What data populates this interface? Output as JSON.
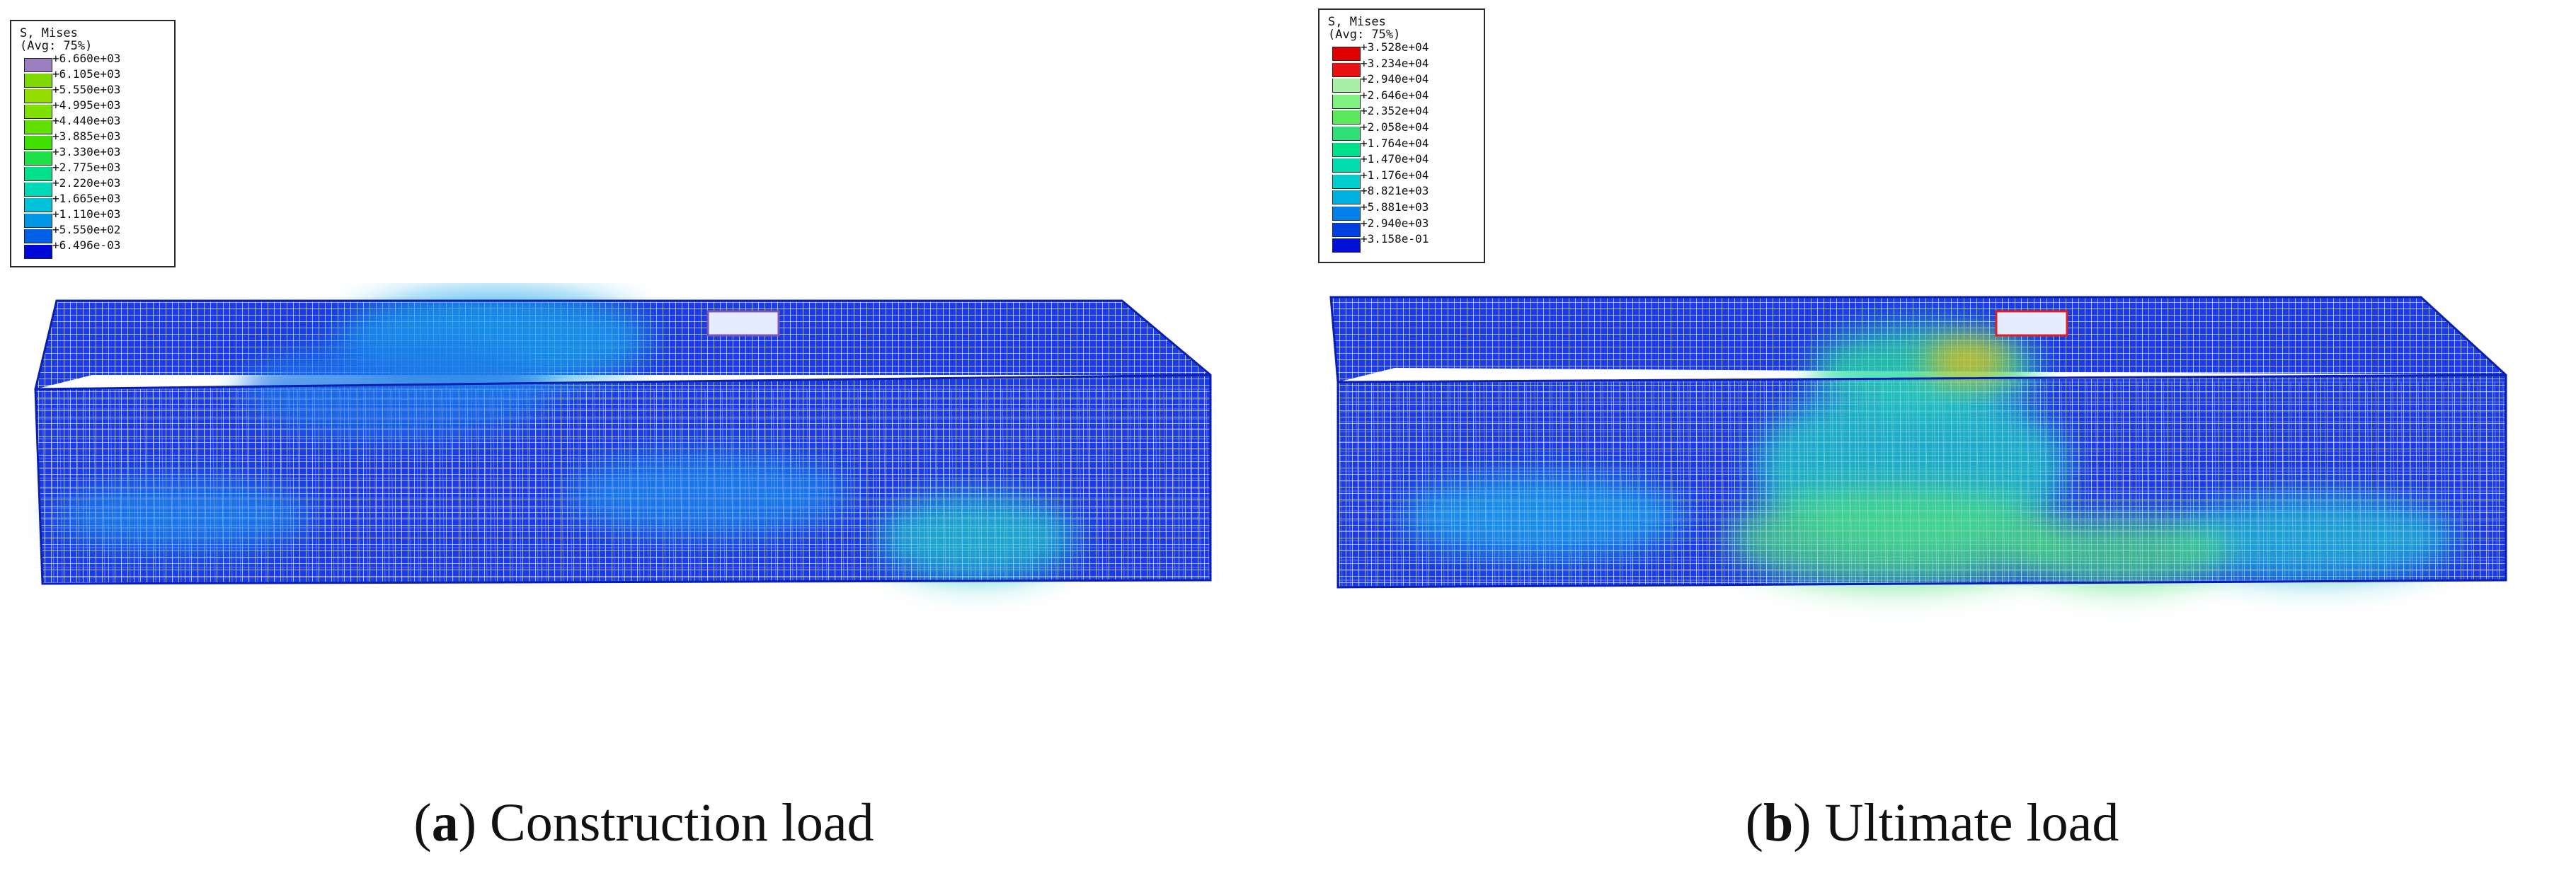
{
  "panels": [
    {
      "id": "a",
      "caption_letter": "a",
      "caption_text": "Construction load",
      "legend": {
        "title": "S, Mises",
        "subtitle": "(Avg: 75%)",
        "values": [
          "+6.660e+03",
          "+6.105e+03",
          "+5.550e+03",
          "+4.995e+03",
          "+4.440e+03",
          "+3.885e+03",
          "+3.330e+03",
          "+2.775e+03",
          "+2.220e+03",
          "+1.665e+03",
          "+1.110e+03",
          "+5.550e+02",
          "+6.496e-03"
        ],
        "colors": [
          "#9a7fbf",
          "#7fd800",
          "#93dd00",
          "#7fe000",
          "#60e000",
          "#3fe000",
          "#20e04a",
          "#00e08a",
          "#00d8b8",
          "#00c4da",
          "#0098e4",
          "#0060e8",
          "#0008d8"
        ]
      }
    },
    {
      "id": "b",
      "caption_letter": "b",
      "caption_text": "Ultimate load",
      "legend": {
        "title": "S, Mises",
        "subtitle": "(Avg: 75%)",
        "values": [
          "+3.528e+04",
          "+3.234e+04",
          "+2.940e+04",
          "+2.646e+04",
          "+2.352e+04",
          "+2.058e+04",
          "+1.764e+04",
          "+1.470e+04",
          "+1.176e+04",
          "+8.821e+03",
          "+5.881e+03",
          "+2.940e+03",
          "+3.158e-01"
        ],
        "colors": [
          "#e00000",
          "#e81010",
          "#a8f0a8",
          "#80f080",
          "#5ce85c",
          "#2fe07a",
          "#00e08a",
          "#00dcae",
          "#00cfd0",
          "#00b0e0",
          "#0080e8",
          "#0040e0",
          "#0010d8"
        ]
      }
    }
  ]
}
